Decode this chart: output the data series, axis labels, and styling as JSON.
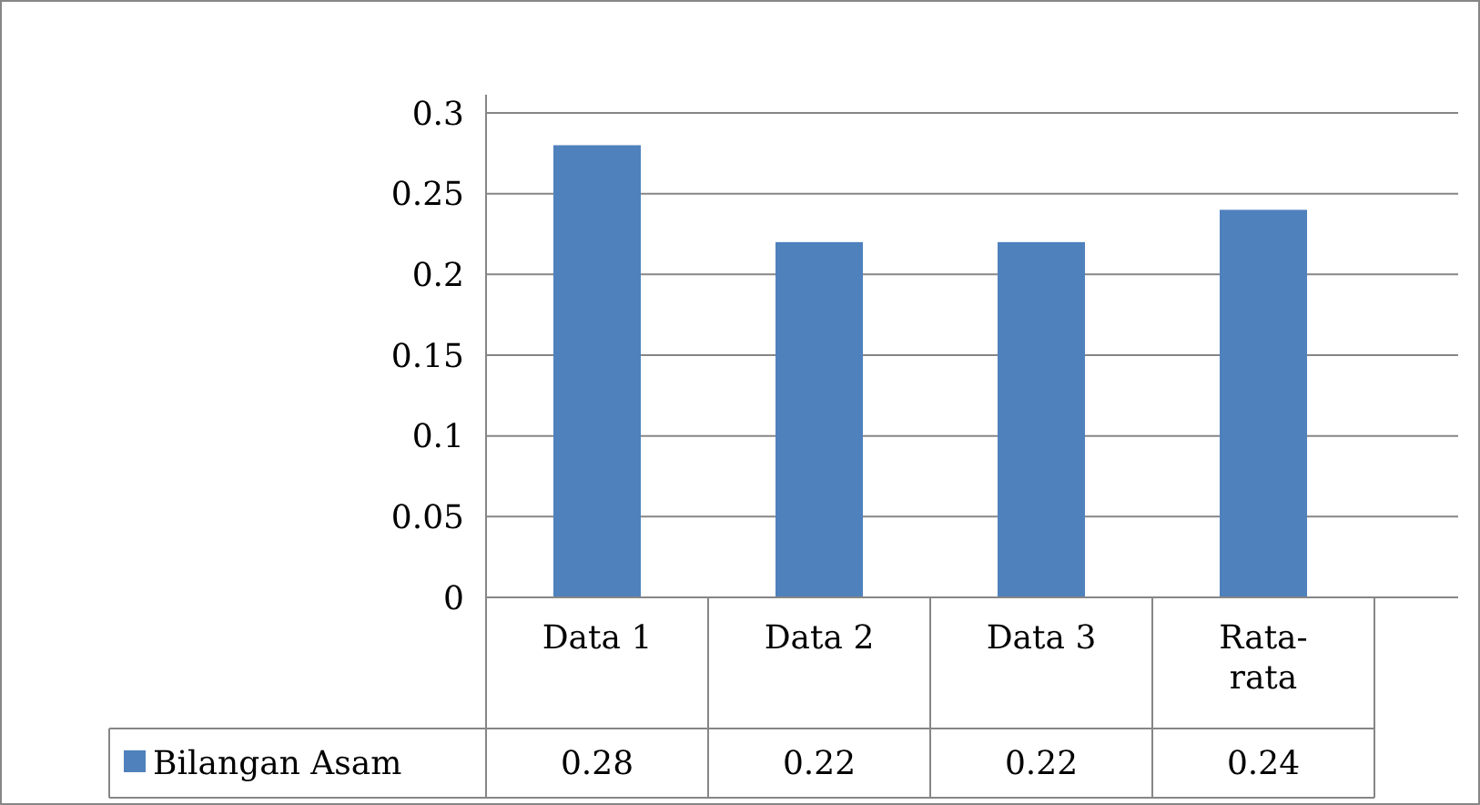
{
  "chart_data": {
    "type": "bar",
    "categories": [
      "Data 1",
      "Data 2",
      "Data 3",
      "Rata-rata"
    ],
    "series": [
      {
        "name": "Bilangan Asam",
        "color": "#4f81bd",
        "values": [
          0.28,
          0.22,
          0.22,
          0.24
        ]
      }
    ],
    "ylim": [
      0,
      0.3
    ],
    "yticks": [
      0,
      0.05,
      0.1,
      0.15,
      0.2,
      0.25,
      0.3
    ],
    "grid": true,
    "legend": "bottom left",
    "data_labels": true
  }
}
